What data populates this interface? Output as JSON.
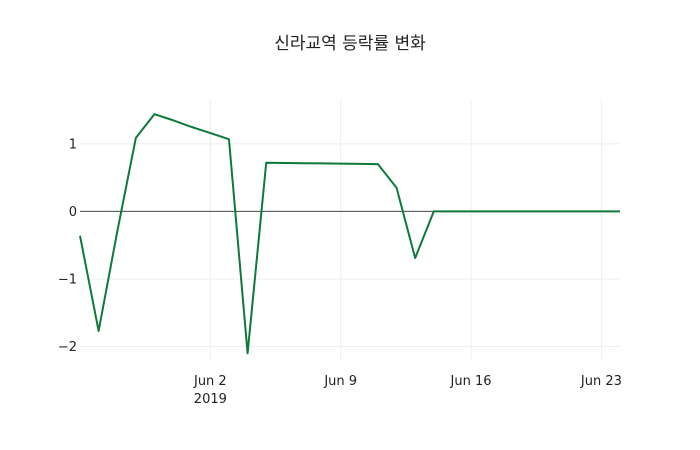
{
  "chart_data": {
    "type": "line",
    "title": "신라교역 등락률 변화",
    "xlabel": "",
    "ylabel": "",
    "x_ticks": [
      {
        "date": "2019-06-02",
        "label": "Jun 2",
        "sublabel": "2019"
      },
      {
        "date": "2019-06-09",
        "label": "Jun 9",
        "sublabel": ""
      },
      {
        "date": "2019-06-16",
        "label": "Jun 16",
        "sublabel": ""
      },
      {
        "date": "2019-06-23",
        "label": "Jun 23",
        "sublabel": ""
      }
    ],
    "y_ticks": [
      {
        "value": 1,
        "label": "1"
      },
      {
        "value": 0,
        "label": "0"
      },
      {
        "value": -1,
        "label": "−1"
      },
      {
        "value": -2,
        "label": "−2"
      }
    ],
    "xlim": [
      "2019-05-26",
      "2019-06-24"
    ],
    "ylim": [
      -2.2,
      1.65
    ],
    "grid": true,
    "line_color": "#0e7a3a",
    "series": [
      {
        "x": [
          "2019-05-26",
          "2019-05-27",
          "2019-05-28",
          "2019-05-29",
          "2019-05-30",
          "2019-05-31",
          "2019-06-01",
          "2019-06-02",
          "2019-06-03",
          "2019-06-04",
          "2019-06-05",
          "2019-06-06",
          "2019-06-07",
          "2019-06-08",
          "2019-06-09",
          "2019-06-10",
          "2019-06-11",
          "2019-06-12",
          "2019-06-13",
          "2019-06-14",
          "2019-06-15",
          "2019-06-16",
          "2019-06-17",
          "2019-06-18",
          "2019-06-19",
          "2019-06-20",
          "2019-06-21",
          "2019-06-22",
          "2019-06-23",
          "2019-06-24"
        ],
        "y": [
          -0.36,
          -1.77,
          -0.3,
          1.09,
          1.44,
          1.35,
          1.25,
          1.16,
          1.07,
          -2.1,
          0.72,
          0.717,
          0.714,
          0.711,
          0.708,
          0.705,
          0.7,
          0.35,
          -0.69,
          0.0,
          0.0,
          0.0,
          0.0,
          0.0,
          0.0,
          0.0,
          0.0,
          0.0,
          0.0,
          0.0
        ]
      }
    ]
  }
}
